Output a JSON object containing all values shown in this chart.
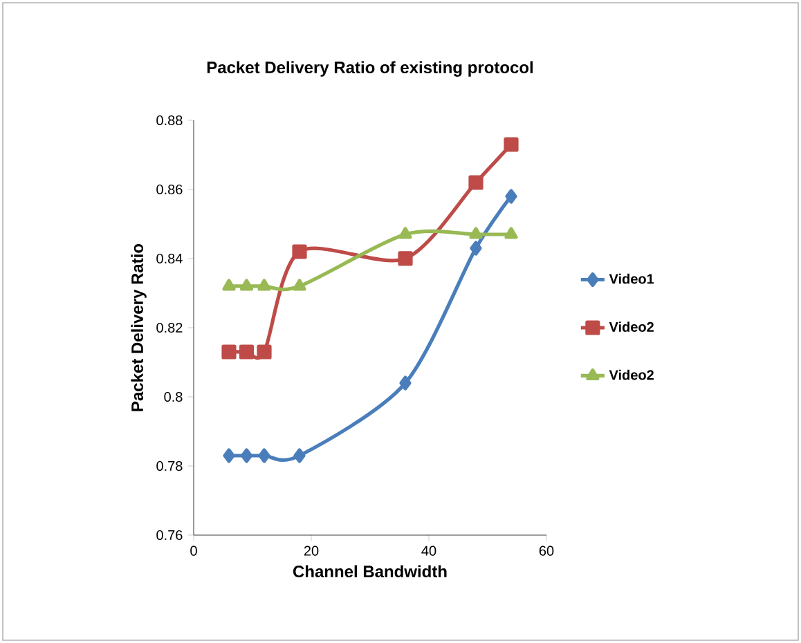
{
  "chart_data": {
    "type": "line",
    "title": "Packet Delivery Ratio of existing protocol",
    "xlabel": "Channel Bandwidth",
    "ylabel": "Packet Delivery Ratio",
    "x": [
      6,
      9,
      12,
      18,
      36,
      48,
      54
    ],
    "series": [
      {
        "name": "Video1",
        "color": "#4a7ebb",
        "marker": "diamond",
        "values": [
          0.783,
          0.783,
          0.783,
          0.783,
          0.804,
          0.843,
          0.858
        ]
      },
      {
        "name": "Video2",
        "color": "#be4b48",
        "marker": "square",
        "values": [
          0.813,
          0.813,
          0.813,
          0.842,
          0.84,
          0.862,
          0.873
        ]
      },
      {
        "name": "Video2",
        "color": "#98b954",
        "marker": "triangle",
        "values": [
          0.832,
          0.832,
          0.832,
          0.832,
          0.847,
          0.847,
          0.847
        ]
      }
    ],
    "xlim": [
      0,
      60
    ],
    "xticks": [
      0,
      20,
      40,
      60
    ],
    "ylim": [
      0.76,
      0.88
    ],
    "yticks": [
      0.76,
      0.78,
      0.8,
      0.82,
      0.84,
      0.86,
      0.88
    ],
    "grid": false,
    "legend": "right",
    "line_style": "solid"
  }
}
